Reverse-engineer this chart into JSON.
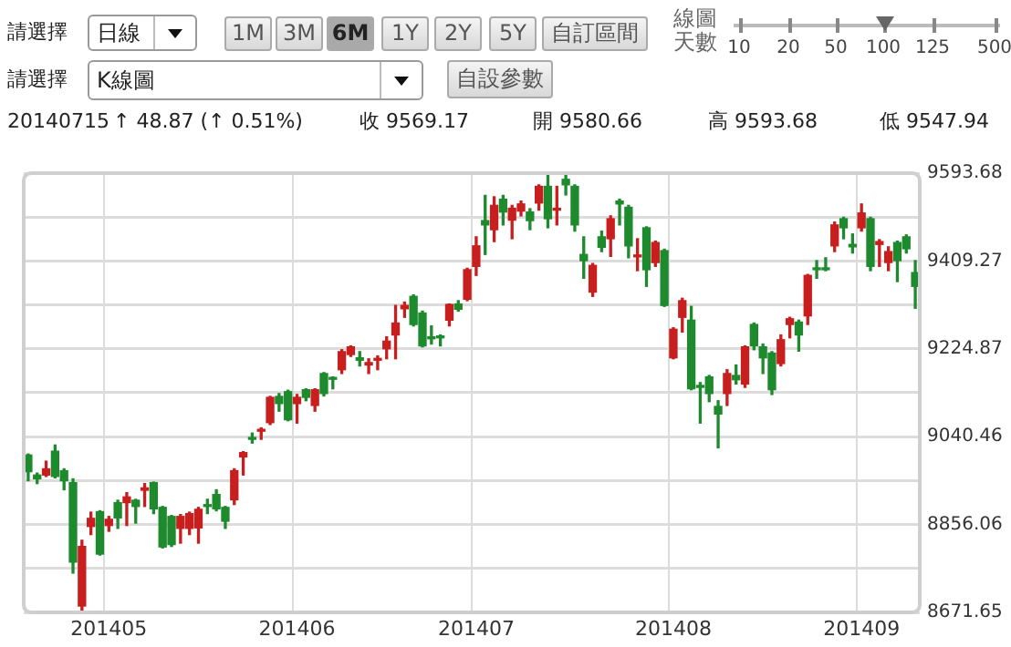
{
  "chart_data": {
    "type": "candlestick",
    "categories": [
      null,
      null,
      null,
      null,
      null,
      null,
      null,
      null,
      null,
      "201405",
      null,
      null,
      null,
      null,
      null,
      null,
      null,
      null,
      null,
      null,
      null,
      null,
      null,
      null,
      null,
      null,
      null,
      null,
      null,
      null,
      "201406",
      null,
      null,
      null,
      null,
      null,
      null,
      null,
      null,
      null,
      null,
      null,
      null,
      null,
      null,
      null,
      null,
      null,
      null,
      null,
      "201407",
      null,
      null,
      null,
      null,
      null,
      null,
      null,
      null,
      null,
      null,
      null,
      null,
      null,
      null,
      null,
      null,
      null,
      null,
      null,
      null,
      null,
      "201408",
      null,
      null,
      null,
      null,
      null,
      null,
      null,
      null,
      null,
      null,
      null,
      null,
      null,
      null,
      null,
      null,
      null,
      null,
      null,
      null,
      "201409",
      null,
      null,
      null,
      null,
      null,
      null
    ],
    "ohlc": [
      [
        9002,
        9004,
        8948,
        8967
      ],
      [
        8960,
        8964,
        8942,
        8952
      ],
      [
        8960,
        8989,
        8957,
        8973
      ],
      [
        9010,
        9023,
        8954,
        8957
      ],
      [
        8969,
        8973,
        8929,
        8948
      ],
      [
        8944,
        8952,
        8754,
        8777
      ],
      [
        8685,
        8823,
        8673,
        8810
      ],
      [
        8852,
        8882,
        8835,
        8869
      ],
      [
        8883,
        8885,
        8792,
        8794
      ],
      [
        8854,
        8873,
        8842,
        8867
      ],
      [
        8902,
        8907,
        8848,
        8870
      ],
      [
        8902,
        8923,
        8854,
        8914
      ],
      [
        8907,
        8909,
        8859,
        8894
      ],
      [
        8928,
        8942,
        8894,
        8933
      ],
      [
        8944,
        8945,
        8879,
        8889
      ],
      [
        8892,
        8894,
        8807,
        8809
      ],
      [
        8873,
        8875,
        8810,
        8814
      ],
      [
        8848,
        8877,
        8817,
        8873
      ],
      [
        8848,
        8882,
        8835,
        8879
      ],
      [
        8849,
        8892,
        8817,
        8888
      ],
      [
        8897,
        8909,
        8879,
        8894
      ],
      [
        8919,
        8929,
        8885,
        8889
      ],
      [
        8892,
        8894,
        8848,
        8863
      ],
      [
        8908,
        8973,
        8898,
        8969
      ],
      [
        8998,
        9009,
        8960,
        9007
      ],
      [
        9038,
        9048,
        9027,
        9035
      ],
      [
        9052,
        9059,
        9035,
        9054
      ],
      [
        9070,
        9125,
        9066,
        9123
      ],
      [
        9125,
        9131,
        9094,
        9110
      ],
      [
        9135,
        9138,
        9074,
        9076
      ],
      [
        9110,
        9129,
        9069,
        9123
      ],
      [
        9139,
        9141,
        9116,
        9123
      ],
      [
        9106,
        9141,
        9094,
        9139
      ],
      [
        9173,
        9175,
        9126,
        9131
      ],
      [
        9164,
        9166,
        9141,
        9161
      ],
      [
        9181,
        9223,
        9173,
        9219
      ],
      [
        9213,
        9231,
        9209,
        9229
      ],
      [
        9206,
        9219,
        9189,
        9201
      ],
      [
        9191,
        9204,
        9173,
        9196
      ],
      [
        9201,
        9210,
        9181,
        9204
      ],
      [
        9225,
        9250,
        9204,
        9241
      ],
      [
        9254,
        9316,
        9204,
        9279
      ],
      [
        9309,
        9323,
        9291,
        9316
      ],
      [
        9335,
        9338,
        9273,
        9276
      ],
      [
        9300,
        9304,
        9229,
        9231
      ],
      [
        9250,
        9273,
        9235,
        9246
      ],
      [
        9250,
        9254,
        9231,
        9248
      ],
      [
        9285,
        9319,
        9273,
        9318
      ],
      [
        9319,
        9326,
        9304,
        9308
      ],
      [
        9329,
        9394,
        9326,
        9391
      ],
      [
        9398,
        9460,
        9379,
        9441
      ],
      [
        9494,
        9547,
        9423,
        9485
      ],
      [
        9475,
        9544,
        9450,
        9526
      ],
      [
        9539,
        9547,
        9485,
        9512
      ],
      [
        9495,
        9526,
        9456,
        9520
      ],
      [
        9514,
        9535,
        9504,
        9529
      ],
      [
        9512,
        9519,
        9475,
        9494
      ],
      [
        9531,
        9569,
        9516,
        9566
      ],
      [
        9566,
        9591,
        9479,
        9498
      ],
      [
        9516,
        9566,
        9485,
        9520
      ],
      [
        9580.66,
        9593.68,
        9547.94,
        9569.17
      ],
      [
        9566,
        9569,
        9472,
        9485
      ],
      [
        9423,
        9460,
        9373,
        9410
      ],
      [
        9344,
        9404,
        9335,
        9400
      ],
      [
        9460,
        9472,
        9429,
        9438
      ],
      [
        9456,
        9504,
        9419,
        9498
      ],
      [
        9535,
        9539,
        9485,
        9529
      ],
      [
        9522,
        9526,
        9416,
        9441
      ],
      [
        9418,
        9456,
        9389,
        9420
      ],
      [
        9479,
        9481,
        9356,
        9391
      ],
      [
        9406,
        9451,
        9398,
        9448
      ],
      [
        9431,
        9434,
        9314,
        9316
      ],
      [
        9206,
        9269,
        9204,
        9266
      ],
      [
        9291,
        9331,
        9260,
        9326
      ],
      [
        9285,
        9314,
        9139,
        9141
      ],
      [
        9148,
        9154,
        9069,
        9144
      ],
      [
        9166,
        9169,
        9114,
        9131
      ],
      [
        9104,
        9116,
        9017,
        9088
      ],
      [
        9131,
        9181,
        9106,
        9173
      ],
      [
        9169,
        9191,
        9151,
        9160
      ],
      [
        9151,
        9231,
        9144,
        9229
      ],
      [
        9276,
        9279,
        9223,
        9231
      ],
      [
        9229,
        9235,
        9173,
        9206
      ],
      [
        9216,
        9219,
        9129,
        9139
      ],
      [
        9194,
        9254,
        9189,
        9244
      ],
      [
        9276,
        9291,
        9248,
        9288
      ],
      [
        9281,
        9285,
        9220,
        9254
      ],
      [
        9294,
        9381,
        9276,
        9379
      ],
      [
        9394,
        9410,
        9373,
        9391
      ],
      [
        9394,
        9416,
        9389,
        9391
      ],
      [
        9441,
        9491,
        9429,
        9485
      ],
      [
        9498,
        9501,
        9456,
        9479
      ],
      [
        9444,
        9466,
        9426,
        9439
      ],
      [
        9479,
        9529,
        9472,
        9510
      ],
      [
        9498,
        9501,
        9389,
        9398
      ],
      [
        9444,
        9454,
        9398,
        9450
      ],
      [
        9406,
        9439,
        9389,
        9429
      ],
      [
        9448,
        9451,
        9366,
        9410
      ],
      [
        9460,
        9464,
        9426,
        9435
      ],
      [
        9385,
        9410,
        9310,
        9356
      ]
    ],
    "colors": [
      "#1e8a2e",
      "#1e8a2e",
      "#c81e1e",
      "#1e8a2e",
      "#1e8a2e",
      "#1e8a2e",
      "#c81e1e",
      "#c81e1e",
      "#1e8a2e",
      "#c81e1e",
      "#1e8a2e",
      "#c81e1e",
      "#1e8a2e",
      "#c81e1e",
      "#1e8a2e",
      "#1e8a2e",
      "#1e8a2e",
      "#c81e1e",
      "#c81e1e",
      "#c81e1e",
      "#1e8a2e",
      "#1e8a2e",
      "#1e8a2e",
      "#c81e1e",
      "#c81e1e",
      "#1e8a2e",
      "#c81e1e",
      "#c81e1e",
      "#1e8a2e",
      "#1e8a2e",
      "#c81e1e",
      "#1e8a2e",
      "#c81e1e",
      "#1e8a2e",
      "#1e8a2e",
      "#c81e1e",
      "#c81e1e",
      "#1e8a2e",
      "#c81e1e",
      "#c81e1e",
      "#c81e1e",
      "#c81e1e",
      "#c81e1e",
      "#1e8a2e",
      "#1e8a2e",
      "#1e8a2e",
      "#1e8a2e",
      "#c81e1e",
      "#1e8a2e",
      "#c81e1e",
      "#c81e1e",
      "#1e8a2e",
      "#c81e1e",
      "#1e8a2e",
      "#c81e1e",
      "#c81e1e",
      "#1e8a2e",
      "#c81e1e",
      "#1e8a2e",
      "#c81e1e",
      "#1e8a2e",
      "#1e8a2e",
      "#1e8a2e",
      "#c81e1e",
      "#1e8a2e",
      "#c81e1e",
      "#1e8a2e",
      "#1e8a2e",
      "#c81e1e",
      "#1e8a2e",
      "#c81e1e",
      "#1e8a2e",
      "#c81e1e",
      "#c81e1e",
      "#1e8a2e",
      "#1e8a2e",
      "#1e8a2e",
      "#1e8a2e",
      "#c81e1e",
      "#1e8a2e",
      "#c81e1e",
      "#1e8a2e",
      "#1e8a2e",
      "#1e8a2e",
      "#c81e1e",
      "#c81e1e",
      "#1e8a2e",
      "#c81e1e",
      "#1e8a2e",
      "#1e8a2e",
      "#c81e1e",
      "#1e8a2e",
      "#1e8a2e",
      "#c81e1e",
      "#1e8a2e",
      "#c81e1e",
      "#c81e1e",
      "#1e8a2e",
      "#1e8a2e",
      "#1e8a2e"
    ],
    "ylim": [
      8671.65,
      9593.68
    ],
    "yticks": [
      8671.65,
      {
        "value": 8763.86,
        "label": null
      },
      8856.06,
      {
        "value": 8948.26,
        "label": null
      },
      9040.46,
      {
        "value": 9132.67,
        "label": null
      },
      9224.87,
      {
        "value": 9317.07,
        "label": null
      },
      9409.27,
      {
        "value": 9501.48,
        "label": null
      },
      9593.68
    ],
    "grid": true,
    "annotations": [
      "請選擇",
      "日線",
      "1M",
      "3M",
      "6M",
      "1Y",
      "2Y",
      "5Y",
      "自訂區間",
      "線圖天數",
      "10",
      "20",
      "50",
      "100",
      "125",
      "500",
      "請選擇",
      "K線圖",
      "自設參數",
      "20140715",
      "↑ 48.87 (↑ 0.51%)",
      "收 9569.17",
      "開 9580.66",
      "高 9593.68",
      "低 9547.94"
    ]
  }
}
